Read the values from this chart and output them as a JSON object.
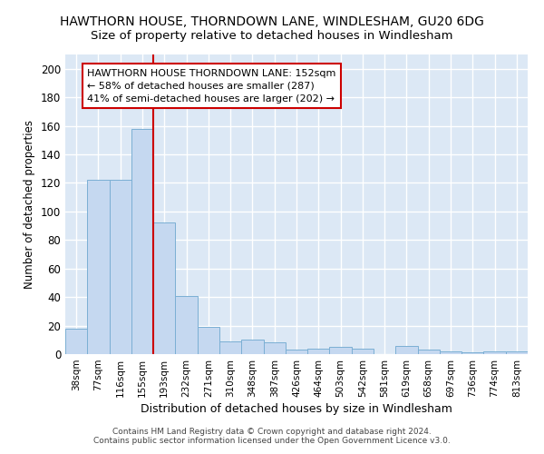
{
  "title": "HAWTHORN HOUSE, THORNDOWN LANE, WINDLESHAM, GU20 6DG",
  "subtitle": "Size of property relative to detached houses in Windlesham",
  "xlabel": "Distribution of detached houses by size in Windlesham",
  "ylabel": "Number of detached properties",
  "categories": [
    "38sqm",
    "77sqm",
    "116sqm",
    "155sqm",
    "193sqm",
    "232sqm",
    "271sqm",
    "310sqm",
    "348sqm",
    "387sqm",
    "426sqm",
    "464sqm",
    "503sqm",
    "542sqm",
    "581sqm",
    "619sqm",
    "658sqm",
    "697sqm",
    "736sqm",
    "774sqm",
    "813sqm"
  ],
  "values": [
    18,
    122,
    122,
    158,
    92,
    41,
    19,
    9,
    10,
    8,
    3,
    4,
    5,
    4,
    0,
    6,
    3,
    2,
    1,
    2,
    2
  ],
  "bar_color": "#c5d8f0",
  "bar_edge_color": "#7bafd4",
  "vline_x": 3.5,
  "vline_color": "#cc0000",
  "ylim": [
    0,
    210
  ],
  "yticks": [
    0,
    20,
    40,
    60,
    80,
    100,
    120,
    140,
    160,
    180,
    200
  ],
  "annotation_text": "HAWTHORN HOUSE THORNDOWN LANE: 152sqm\n← 58% of detached houses are smaller (287)\n41% of semi-detached houses are larger (202) →",
  "annotation_box_color": "#ffffff",
  "annotation_box_edge": "#cc0000",
  "footer1": "Contains HM Land Registry data © Crown copyright and database right 2024.",
  "footer2": "Contains public sector information licensed under the Open Government Licence v3.0.",
  "background_color": "#dce8f5",
  "grid_color": "#ffffff",
  "title_fontsize": 10,
  "subtitle_fontsize": 9.5
}
